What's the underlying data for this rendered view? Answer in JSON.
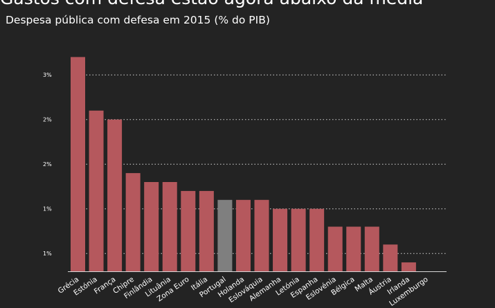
{
  "chart_data": {
    "type": "bar",
    "title": "Gastos com defesa estão agora abaixo da média",
    "subtitle": "Despesa pública com defesa em 2015 (% do PIB)",
    "xlabel": "",
    "ylabel": "",
    "ylim": [
      0.4,
      3.0
    ],
    "grid": true,
    "y_ticks": [
      {
        "value": 0.6,
        "label": "1%"
      },
      {
        "value": 1.1,
        "label": "1%"
      },
      {
        "value": 1.6,
        "label": "2%"
      },
      {
        "value": 2.1,
        "label": "2%"
      },
      {
        "value": 2.6,
        "label": "3%"
      }
    ],
    "categories": [
      "Grécia",
      "Estónia",
      "França",
      "Chipre",
      "Finlândia",
      "Lituânia",
      "Zona Euro",
      "Itália",
      "Portugal",
      "Holanda",
      "Eslováquia",
      "Alemanha",
      "Letónia",
      "Espanha",
      "Eslovénia",
      "Bélgica",
      "Malta",
      "Áustria",
      "Irlanda",
      "Luxemburgo"
    ],
    "values": [
      2.8,
      2.2,
      2.1,
      1.5,
      1.4,
      1.4,
      1.3,
      1.3,
      1.2,
      1.2,
      1.2,
      1.1,
      1.1,
      1.1,
      0.9,
      0.9,
      0.9,
      0.7,
      0.5,
      0.4
    ],
    "highlight_category": "Portugal",
    "colors": {
      "bar": "#b5585d",
      "highlight": "#7f7f7f",
      "background": "#232323",
      "text": "#ffffff",
      "grid": "#d8d8d8"
    }
  }
}
